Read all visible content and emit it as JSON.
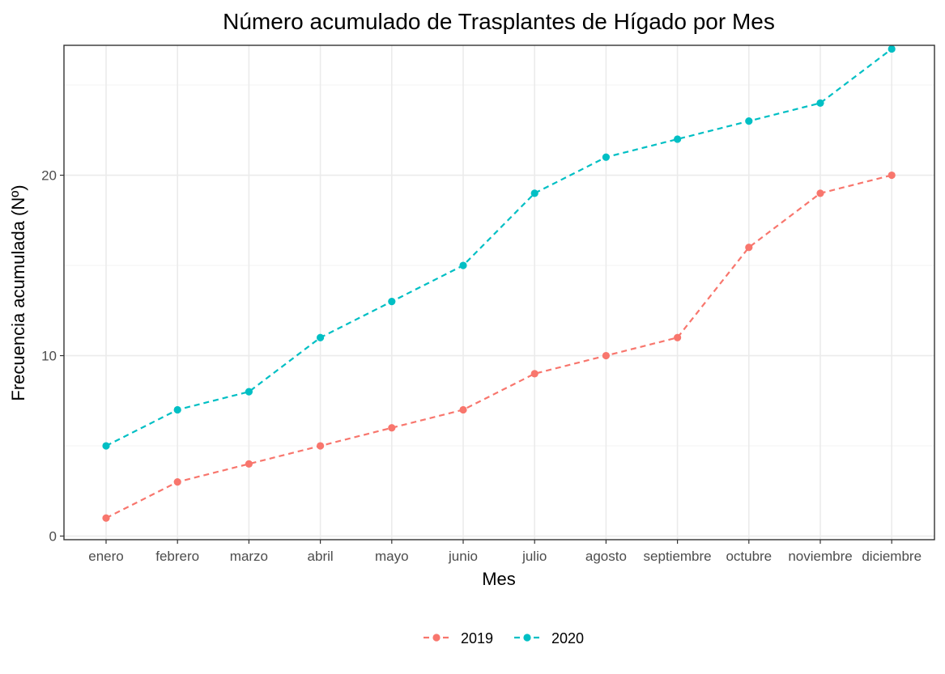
{
  "chart_data": {
    "type": "line",
    "title": "Número acumulado de Trasplantes de Hígado por Mes",
    "xlabel": "Mes",
    "ylabel": "Frecuencia acumulada (Nº)",
    "categories": [
      "enero",
      "febrero",
      "marzo",
      "abril",
      "mayo",
      "junio",
      "julio",
      "agosto",
      "septiembre",
      "octubre",
      "noviembre",
      "diciembre"
    ],
    "ylim": [
      -0.2,
      27.2
    ],
    "yticks": [
      0,
      10,
      20
    ],
    "yminor": [
      5,
      15,
      25
    ],
    "grid": true,
    "legend_position": "bottom",
    "series": [
      {
        "name": "2019",
        "color": "#F8766D",
        "values": [
          1,
          3,
          4,
          5,
          6,
          7,
          9,
          10,
          11,
          16,
          19,
          20
        ]
      },
      {
        "name": "2020",
        "color": "#00BFC4",
        "values": [
          5,
          7,
          8,
          11,
          13,
          15,
          19,
          21,
          22,
          23,
          24,
          27
        ]
      }
    ]
  }
}
